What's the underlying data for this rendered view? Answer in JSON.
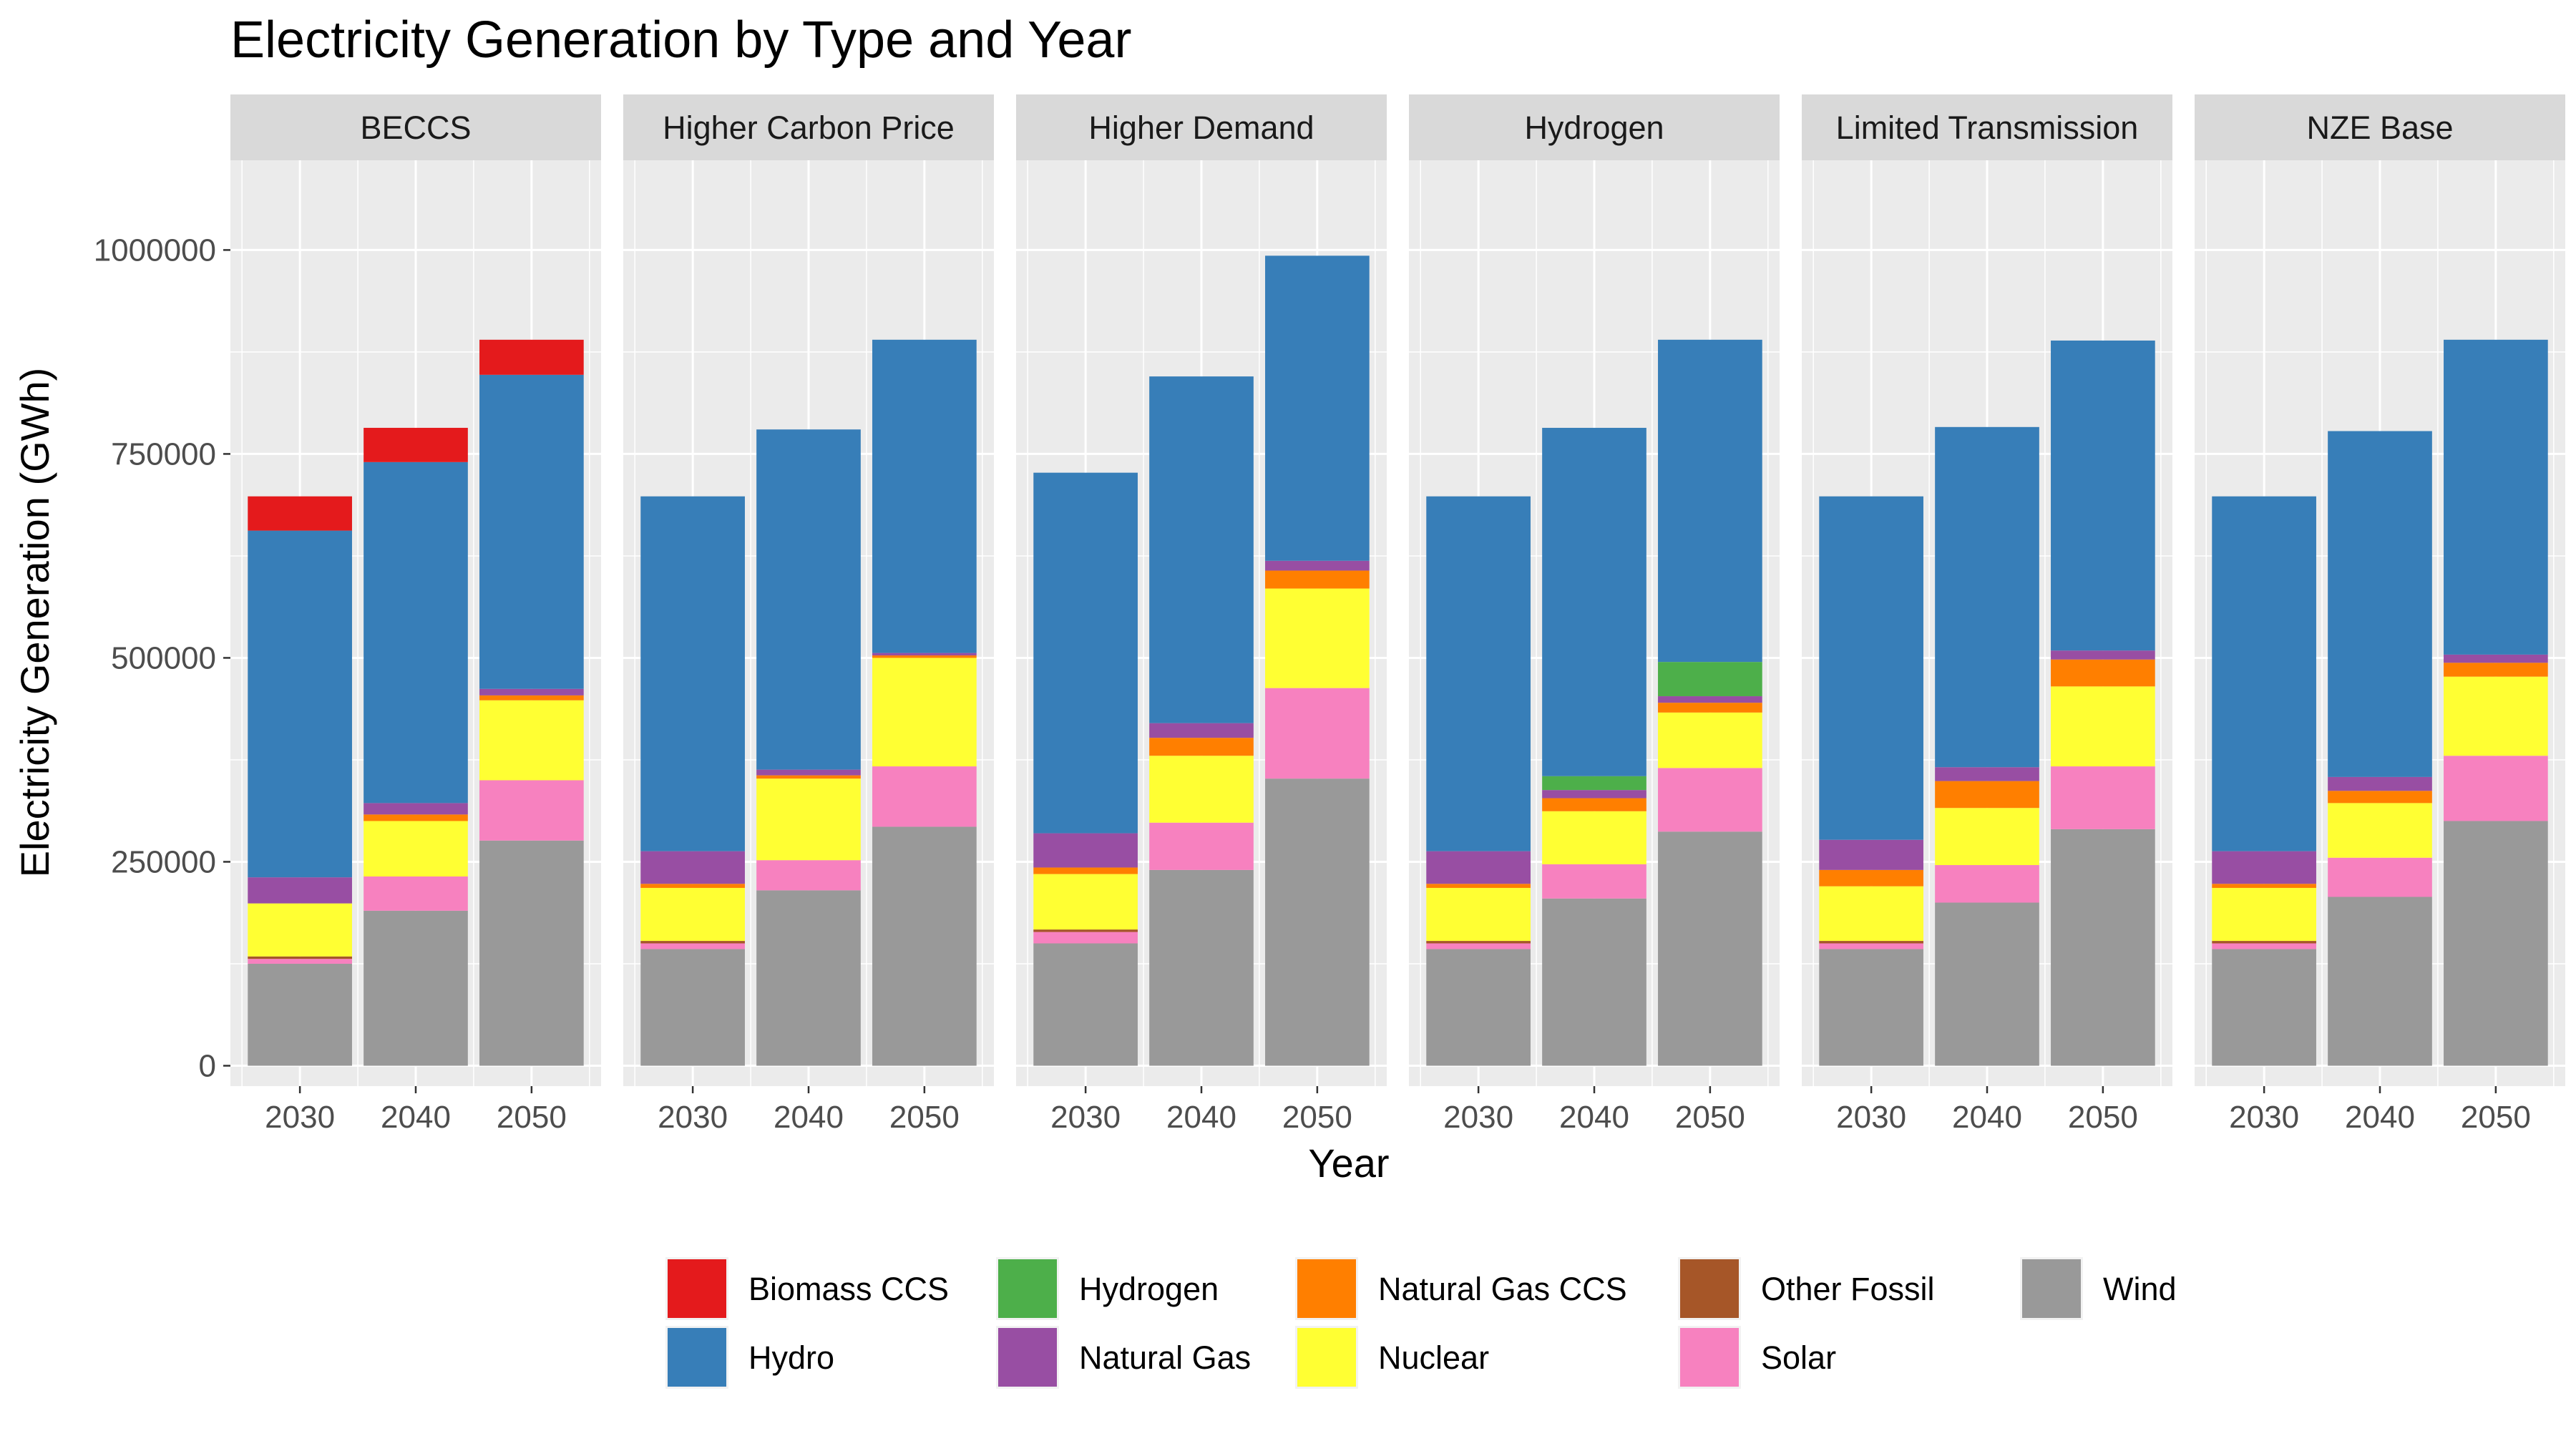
{
  "chart_data": {
    "type": "bar",
    "stacked": true,
    "faceted": true,
    "title": "Electricity Generation by Type and Year",
    "xlabel": "Year",
    "ylabel": "Electricity Generation (GWh)",
    "ylim": [
      -25000,
      1110000
    ],
    "yticks": [
      0,
      250000,
      500000,
      750000,
      1000000
    ],
    "ytick_labels": [
      "0",
      "250000",
      "500000",
      "750000",
      "1000000"
    ],
    "categories": [
      "2030",
      "2040",
      "2050"
    ],
    "legend_position": "bottom",
    "grid": true,
    "series": [
      {
        "name": "Wind",
        "color": "#999999"
      },
      {
        "name": "Solar",
        "color": "#F781BF"
      },
      {
        "name": "Other Fossil",
        "color": "#A65628"
      },
      {
        "name": "Nuclear",
        "color": "#FFFF33"
      },
      {
        "name": "Natural Gas CCS",
        "color": "#FF7F00"
      },
      {
        "name": "Natural Gas",
        "color": "#984EA3"
      },
      {
        "name": "Hydrogen",
        "color": "#4DAF4A"
      },
      {
        "name": "Hydro",
        "color": "#377EB8"
      },
      {
        "name": "Biomass CCS",
        "color": "#E41A1C"
      }
    ],
    "legend_order": [
      "Biomass CCS",
      "Hydro",
      "Hydrogen",
      "Natural Gas",
      "Natural Gas CCS",
      "Nuclear",
      "Other Fossil",
      "Solar",
      "Wind"
    ],
    "facets": [
      {
        "name": "BECCS",
        "bars": [
          {
            "Wind": 125000,
            "Solar": 6000,
            "Other Fossil": 3000,
            "Nuclear": 65000,
            "Natural Gas CCS": 0,
            "Natural Gas": 32000,
            "Hydrogen": 0,
            "Hydro": 425000,
            "Biomass CCS": 42000
          },
          {
            "Wind": 190000,
            "Solar": 42000,
            "Other Fossil": 0,
            "Nuclear": 68000,
            "Natural Gas CCS": 8000,
            "Natural Gas": 14000,
            "Hydrogen": 0,
            "Hydro": 418000,
            "Biomass CCS": 42000
          },
          {
            "Wind": 276000,
            "Solar": 74000,
            "Other Fossil": 0,
            "Nuclear": 98000,
            "Natural Gas CCS": 6000,
            "Natural Gas": 8000,
            "Hydrogen": 0,
            "Hydro": 385000,
            "Biomass CCS": 43000
          }
        ]
      },
      {
        "name": "Higher Carbon Price",
        "bars": [
          {
            "Wind": 143000,
            "Solar": 7000,
            "Other Fossil": 3000,
            "Nuclear": 65000,
            "Natural Gas CCS": 5000,
            "Natural Gas": 40000,
            "Hydrogen": 0,
            "Hydro": 435000,
            "Biomass CCS": 0
          },
          {
            "Wind": 215000,
            "Solar": 37000,
            "Other Fossil": 0,
            "Nuclear": 100000,
            "Natural Gas CCS": 4000,
            "Natural Gas": 7000,
            "Hydrogen": 0,
            "Hydro": 417000,
            "Biomass CCS": 0
          },
          {
            "Wind": 293000,
            "Solar": 74000,
            "Other Fossil": 0,
            "Nuclear": 133000,
            "Natural Gas CCS": 3000,
            "Natural Gas": 3000,
            "Hydrogen": 0,
            "Hydro": 384000,
            "Biomass CCS": 0
          }
        ]
      },
      {
        "name": "Higher Demand",
        "bars": [
          {
            "Wind": 150000,
            "Solar": 14000,
            "Other Fossil": 3000,
            "Nuclear": 68000,
            "Natural Gas CCS": 8000,
            "Natural Gas": 42000,
            "Hydrogen": 0,
            "Hydro": 442000,
            "Biomass CCS": 0
          },
          {
            "Wind": 240000,
            "Solar": 58000,
            "Other Fossil": 0,
            "Nuclear": 82000,
            "Natural Gas CCS": 22000,
            "Natural Gas": 18000,
            "Hydrogen": 0,
            "Hydro": 425000,
            "Biomass CCS": 0
          },
          {
            "Wind": 352000,
            "Solar": 111000,
            "Other Fossil": 0,
            "Nuclear": 122000,
            "Natural Gas CCS": 22000,
            "Natural Gas": 12000,
            "Hydrogen": 0,
            "Hydro": 374000,
            "Biomass CCS": 0
          }
        ]
      },
      {
        "name": "Hydrogen",
        "bars": [
          {
            "Wind": 143000,
            "Solar": 7000,
            "Other Fossil": 3000,
            "Nuclear": 65000,
            "Natural Gas CCS": 5000,
            "Natural Gas": 40000,
            "Hydrogen": 0,
            "Hydro": 435000,
            "Biomass CCS": 0
          },
          {
            "Wind": 205000,
            "Solar": 42000,
            "Other Fossil": 0,
            "Nuclear": 65000,
            "Natural Gas CCS": 16000,
            "Natural Gas": 10000,
            "Hydrogen": 17000,
            "Hydro": 427000,
            "Biomass CCS": 0
          },
          {
            "Wind": 287000,
            "Solar": 78000,
            "Other Fossil": 0,
            "Nuclear": 68000,
            "Natural Gas CCS": 12000,
            "Natural Gas": 8000,
            "Hydrogen": 42000,
            "Hydro": 395000,
            "Biomass CCS": 0
          }
        ]
      },
      {
        "name": "Limited Transmission",
        "bars": [
          {
            "Wind": 143000,
            "Solar": 7000,
            "Other Fossil": 3000,
            "Nuclear": 67000,
            "Natural Gas CCS": 20000,
            "Natural Gas": 37000,
            "Hydrogen": 0,
            "Hydro": 421000,
            "Biomass CCS": 0
          },
          {
            "Wind": 200000,
            "Solar": 46000,
            "Other Fossil": 0,
            "Nuclear": 70000,
            "Natural Gas CCS": 33000,
            "Natural Gas": 17000,
            "Hydrogen": 0,
            "Hydro": 417000,
            "Biomass CCS": 0
          },
          {
            "Wind": 290000,
            "Solar": 77000,
            "Other Fossil": 0,
            "Nuclear": 98000,
            "Natural Gas CCS": 33000,
            "Natural Gas": 11000,
            "Hydrogen": 0,
            "Hydro": 380000,
            "Biomass CCS": 0
          }
        ]
      },
      {
        "name": "NZE Base",
        "bars": [
          {
            "Wind": 143000,
            "Solar": 7000,
            "Other Fossil": 3000,
            "Nuclear": 65000,
            "Natural Gas CCS": 5000,
            "Natural Gas": 40000,
            "Hydrogen": 0,
            "Hydro": 435000,
            "Biomass CCS": 0
          },
          {
            "Wind": 207000,
            "Solar": 48000,
            "Other Fossil": 0,
            "Nuclear": 67000,
            "Natural Gas CCS": 15000,
            "Natural Gas": 17000,
            "Hydrogen": 0,
            "Hydro": 424000,
            "Biomass CCS": 0
          },
          {
            "Wind": 300000,
            "Solar": 80000,
            "Other Fossil": 0,
            "Nuclear": 97000,
            "Natural Gas CCS": 17000,
            "Natural Gas": 10000,
            "Hydrogen": 0,
            "Hydro": 386000,
            "Biomass CCS": 0
          }
        ]
      }
    ]
  }
}
